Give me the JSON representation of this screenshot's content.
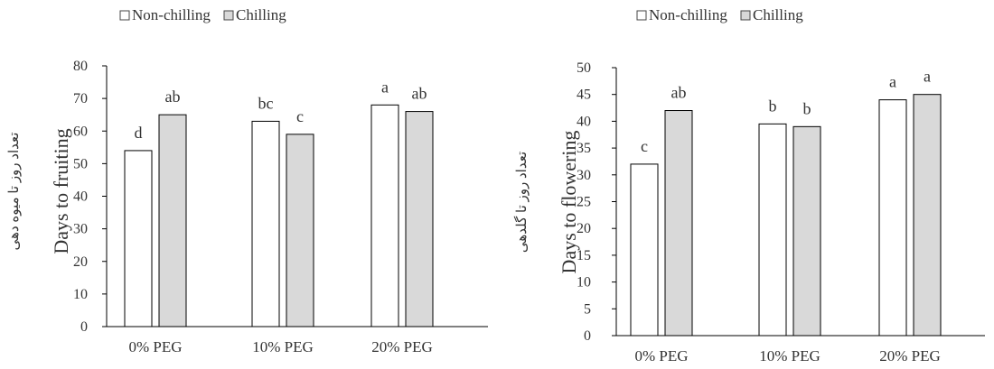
{
  "colors": {
    "non_chilling": "#ffffff",
    "chilling": "#d9d9d9",
    "bar_stroke": "#000000",
    "axis": "#000000"
  },
  "chart_data": [
    {
      "type": "bar",
      "categories": [
        "0% PEG",
        "10% PEG",
        "20% PEG"
      ],
      "ylabel": "Days to fruiting",
      "ylabel_fa": "تعداد روز تا میوه دهی",
      "ylim": [
        0,
        80
      ],
      "yticks": [
        "0",
        "10",
        "20",
        "30",
        "40",
        "50",
        "60",
        "70",
        "80"
      ],
      "grid": false,
      "legend_position": "top",
      "series": [
        {
          "name": "Non-chilling",
          "values": [
            54,
            63,
            68
          ],
          "labels": [
            "d",
            "bc",
            "a"
          ]
        },
        {
          "name": "Chilling",
          "values": [
            65,
            59,
            66
          ],
          "labels": [
            "ab",
            "c",
            "ab"
          ]
        }
      ]
    },
    {
      "type": "bar",
      "categories": [
        "0% PEG",
        "10% PEG",
        "20% PEG"
      ],
      "ylabel": "Days to flowering",
      "ylabel_fa": "تعداد روز تا گلدهی",
      "ylim": [
        0,
        50
      ],
      "yticks": [
        "0",
        "5",
        "10",
        "15",
        "20",
        "25",
        "30",
        "35",
        "40",
        "45",
        "50"
      ],
      "grid": false,
      "legend_position": "top",
      "series": [
        {
          "name": "Non-chilling",
          "values": [
            32,
            39.5,
            44
          ],
          "labels": [
            "c",
            "b",
            "a"
          ]
        },
        {
          "name": "Chilling",
          "values": [
            42,
            39,
            45
          ],
          "labels": [
            "ab",
            "b",
            "a"
          ]
        }
      ]
    }
  ]
}
